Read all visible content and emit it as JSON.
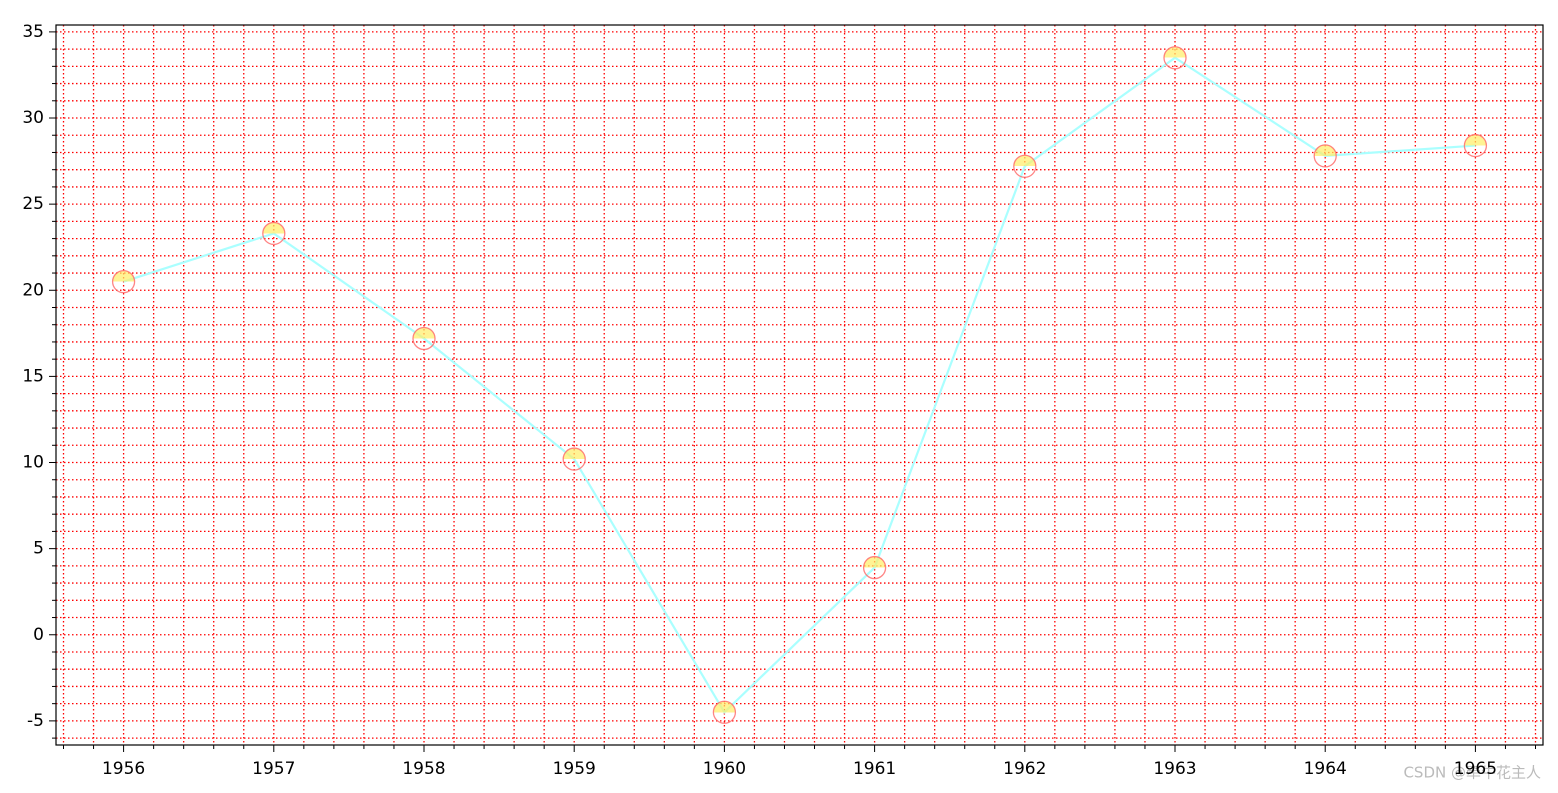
{
  "chart_data": {
    "type": "line",
    "x": [
      1956,
      1957,
      1958,
      1959,
      1960,
      1961,
      1962,
      1963,
      1964,
      1965
    ],
    "series": [
      {
        "color": "#aaffff",
        "marker_face": "#ffee66",
        "marker_edge": "#ff6666",
        "values": [
          20.5,
          23.3,
          17.2,
          10.2,
          -4.5,
          3.9,
          27.2,
          33.5,
          27.8,
          28.4
        ]
      }
    ],
    "xlim": [
      1955.55,
      1965.45
    ],
    "ylim": [
      -6.4,
      35.4
    ],
    "xticks": [
      1956,
      1957,
      1958,
      1959,
      1960,
      1961,
      1962,
      1963,
      1964,
      1965
    ],
    "yticks": [
      -5,
      0,
      5,
      10,
      15,
      20,
      25,
      30,
      35
    ],
    "xminorticks": [
      1955.6,
      1955.8,
      1956.2,
      1956.4,
      1956.6,
      1956.8,
      1957.2,
      1957.4,
      1957.6,
      1957.8,
      1958.2,
      1958.4,
      1958.6,
      1958.8,
      1959.2,
      1959.4,
      1959.6,
      1959.8,
      1960.2,
      1960.4,
      1960.6,
      1960.8,
      1961.2,
      1961.4,
      1961.6,
      1961.8,
      1962.2,
      1962.4,
      1962.6,
      1962.8,
      1963.2,
      1963.4,
      1963.6,
      1963.8,
      1964.2,
      1964.4,
      1964.6,
      1964.8,
      1965.2,
      1965.4
    ],
    "yminorticks": [
      -6,
      -4,
      -3,
      -2,
      -1,
      1,
      2,
      3,
      4,
      6,
      7,
      8,
      9,
      11,
      12,
      13,
      14,
      16,
      17,
      18,
      19,
      21,
      22,
      23,
      24,
      26,
      27,
      28,
      29,
      31,
      32,
      33,
      34
    ],
    "grid": true,
    "grid_color": "#ff0000",
    "watermark": "CSDN @牵牛花主人"
  }
}
